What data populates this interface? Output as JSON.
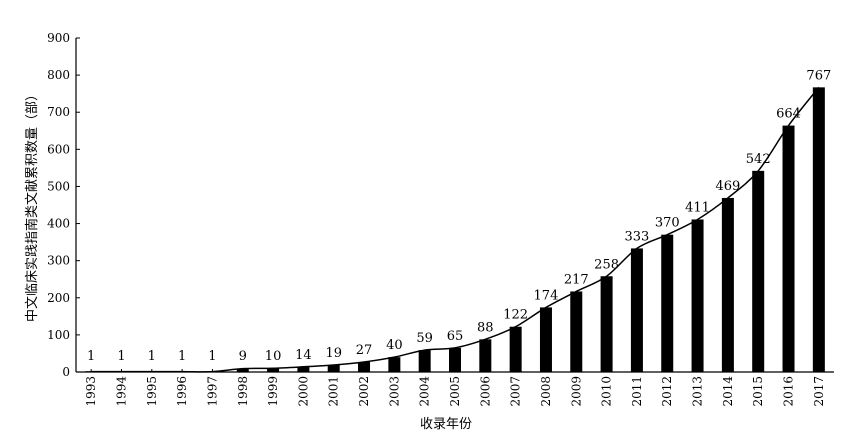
{
  "chart_data": {
    "type": "bar",
    "categories": [
      "1993",
      "1994",
      "1995",
      "1996",
      "1997",
      "1998",
      "1999",
      "2000",
      "2001",
      "2002",
      "2003",
      "2004",
      "2005",
      "2006",
      "2007",
      "2008",
      "2009",
      "2010",
      "2011",
      "2012",
      "2013",
      "2014",
      "2015",
      "2016",
      "2017"
    ],
    "values": [
      1,
      1,
      1,
      1,
      1,
      9,
      10,
      14,
      19,
      27,
      40,
      59,
      65,
      88,
      122,
      174,
      217,
      258,
      333,
      370,
      411,
      469,
      542,
      664,
      767
    ],
    "xlabel": "收录年份",
    "ylabel": "中文临床实践指南类文献累积数量（部）",
    "ylim": [
      0,
      900
    ],
    "yticks": [
      0,
      100,
      200,
      300,
      400,
      500,
      600,
      700,
      800,
      900
    ],
    "overlay": "line",
    "data_labels": true,
    "bar_color": "#000000",
    "line_color": "#000000"
  }
}
